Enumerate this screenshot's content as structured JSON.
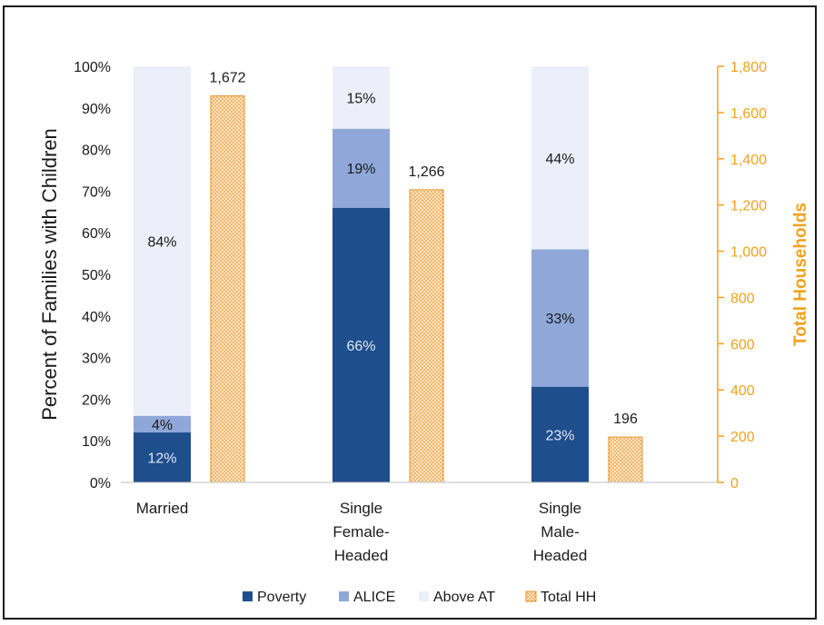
{
  "chart_data": {
    "type": "bar",
    "categories": [
      [
        "Married"
      ],
      [
        "Single",
        "Female-",
        "Headed"
      ],
      [
        "Single",
        "Male-",
        "Headed"
      ]
    ],
    "series": [
      {
        "name": "Poverty",
        "axis": "left",
        "stacked": true,
        "color": "#1f4e8c",
        "values": [
          12,
          66,
          23
        ]
      },
      {
        "name": "ALICE",
        "axis": "left",
        "stacked": true,
        "color": "#8fa8d9",
        "values": [
          4,
          19,
          33
        ]
      },
      {
        "name": "Above AT",
        "axis": "left",
        "stacked": true,
        "color": "#eceff9",
        "values": [
          84,
          15,
          44
        ]
      },
      {
        "name": "Total HH",
        "axis": "right",
        "stacked": false,
        "color": "#f5a940",
        "pattern": "dotted",
        "values": [
          1672,
          1266,
          196
        ]
      }
    ],
    "segment_labels": {
      "Poverty": [
        "12%",
        "66%",
        "23%"
      ],
      "ALICE": [
        "4%",
        "19%",
        "33%"
      ],
      "Above AT": [
        "84%",
        "15%",
        "44%"
      ]
    },
    "total_labels": [
      "1,672",
      "1,266",
      "196"
    ],
    "ylabel": "Percent of Families with Children",
    "y2label": "Total Households",
    "ylim": [
      0,
      100
    ],
    "y2lim": [
      0,
      1800
    ],
    "yticks": [
      "0%",
      "10%",
      "20%",
      "30%",
      "40%",
      "50%",
      "60%",
      "70%",
      "80%",
      "90%",
      "100%"
    ],
    "y2ticks": [
      "0",
      "200",
      "400",
      "600",
      "800",
      "1,000",
      "1,200",
      "1,400",
      "1,600",
      "1,800"
    ],
    "legend_position": "bottom",
    "grid": false,
    "y2_color": "#f0a21b"
  }
}
